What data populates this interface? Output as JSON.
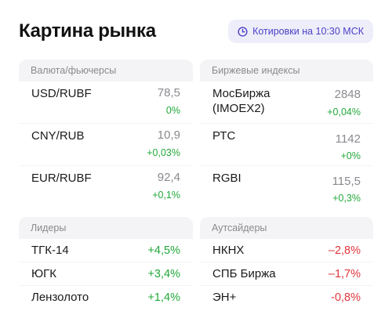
{
  "header": {
    "title": "Картина рынка",
    "badge": "Котировки на 10:30 МСК",
    "badge_icon": "clock-icon",
    "accent_color": "#4b3fc7"
  },
  "currency": {
    "title": "Валюта/фьючерсы",
    "rows": [
      {
        "name": "USD/RUBF",
        "price": "78,5",
        "change": "0%"
      },
      {
        "name": "CNY/RUB",
        "price": "10,9",
        "change": "+0,03%"
      },
      {
        "name": "EUR/RUBF",
        "price": "92,4",
        "change": "+0,1%"
      }
    ]
  },
  "indices": {
    "title": "Биржевые индексы",
    "rows": [
      {
        "name1": "МосБиржа",
        "name2": "(IMOEX2)",
        "price": "2848",
        "change": "+0,04%"
      },
      {
        "name1": "РТС",
        "price": "1142",
        "change": "+0%"
      },
      {
        "name1": "RGBI",
        "price": "115,5",
        "change": "+0,3%"
      }
    ]
  },
  "leaders": {
    "title": "Лидеры",
    "rows": [
      {
        "name": "ТГК-14",
        "change": "+4,5%"
      },
      {
        "name": "ЮГК",
        "change": "+3,4%"
      },
      {
        "name": "Лензолото",
        "change": "+1,4%"
      }
    ]
  },
  "outsiders": {
    "title": "Аутсайдеры",
    "rows": [
      {
        "name": "НКНХ",
        "change": "–2,8%"
      },
      {
        "name": "СПБ Биржа",
        "change": "–1,7%"
      },
      {
        "name": "ЭН+",
        "change": "-0,8%"
      }
    ]
  },
  "colors": {
    "positive": "#22a83a",
    "negative": "#e0363b",
    "panel_bg": "#f4f4f6"
  }
}
